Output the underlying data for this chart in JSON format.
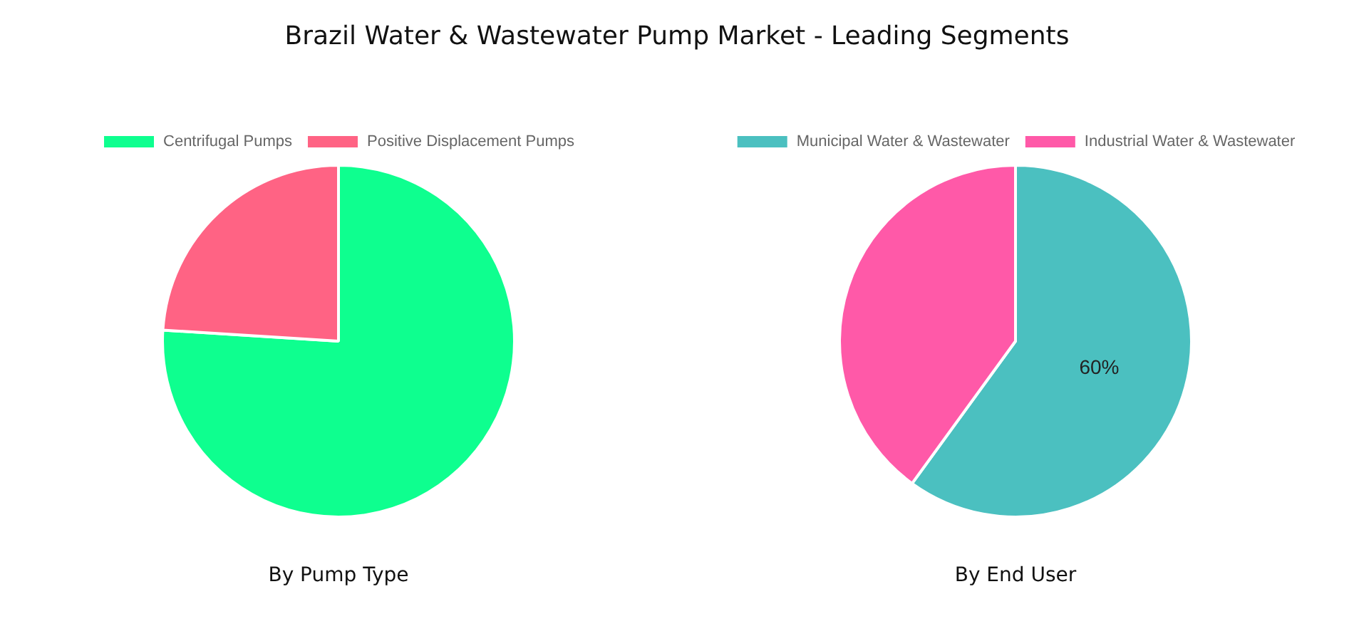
{
  "chart_data": [
    {
      "type": "pie",
      "title": "Brazil Water & Wastewater Pump Market - Leading Segments",
      "xlabel": "By Pump Type",
      "categories": [
        "Centrifugal Pumps",
        "Positive Displacement Pumps"
      ],
      "values": [
        76,
        24
      ],
      "colors": [
        "#0eff8f",
        "#ff6384"
      ],
      "legend": "top"
    },
    {
      "type": "pie",
      "xlabel": "By End User",
      "categories": [
        "Municipal Water & Wastewater",
        "Industrial Water & Wastewater"
      ],
      "values": [
        60,
        40
      ],
      "colors": [
        "#4bc0c0",
        "#ff59a8"
      ],
      "value_labels": [
        "60%",
        null
      ],
      "legend": "top"
    }
  ]
}
